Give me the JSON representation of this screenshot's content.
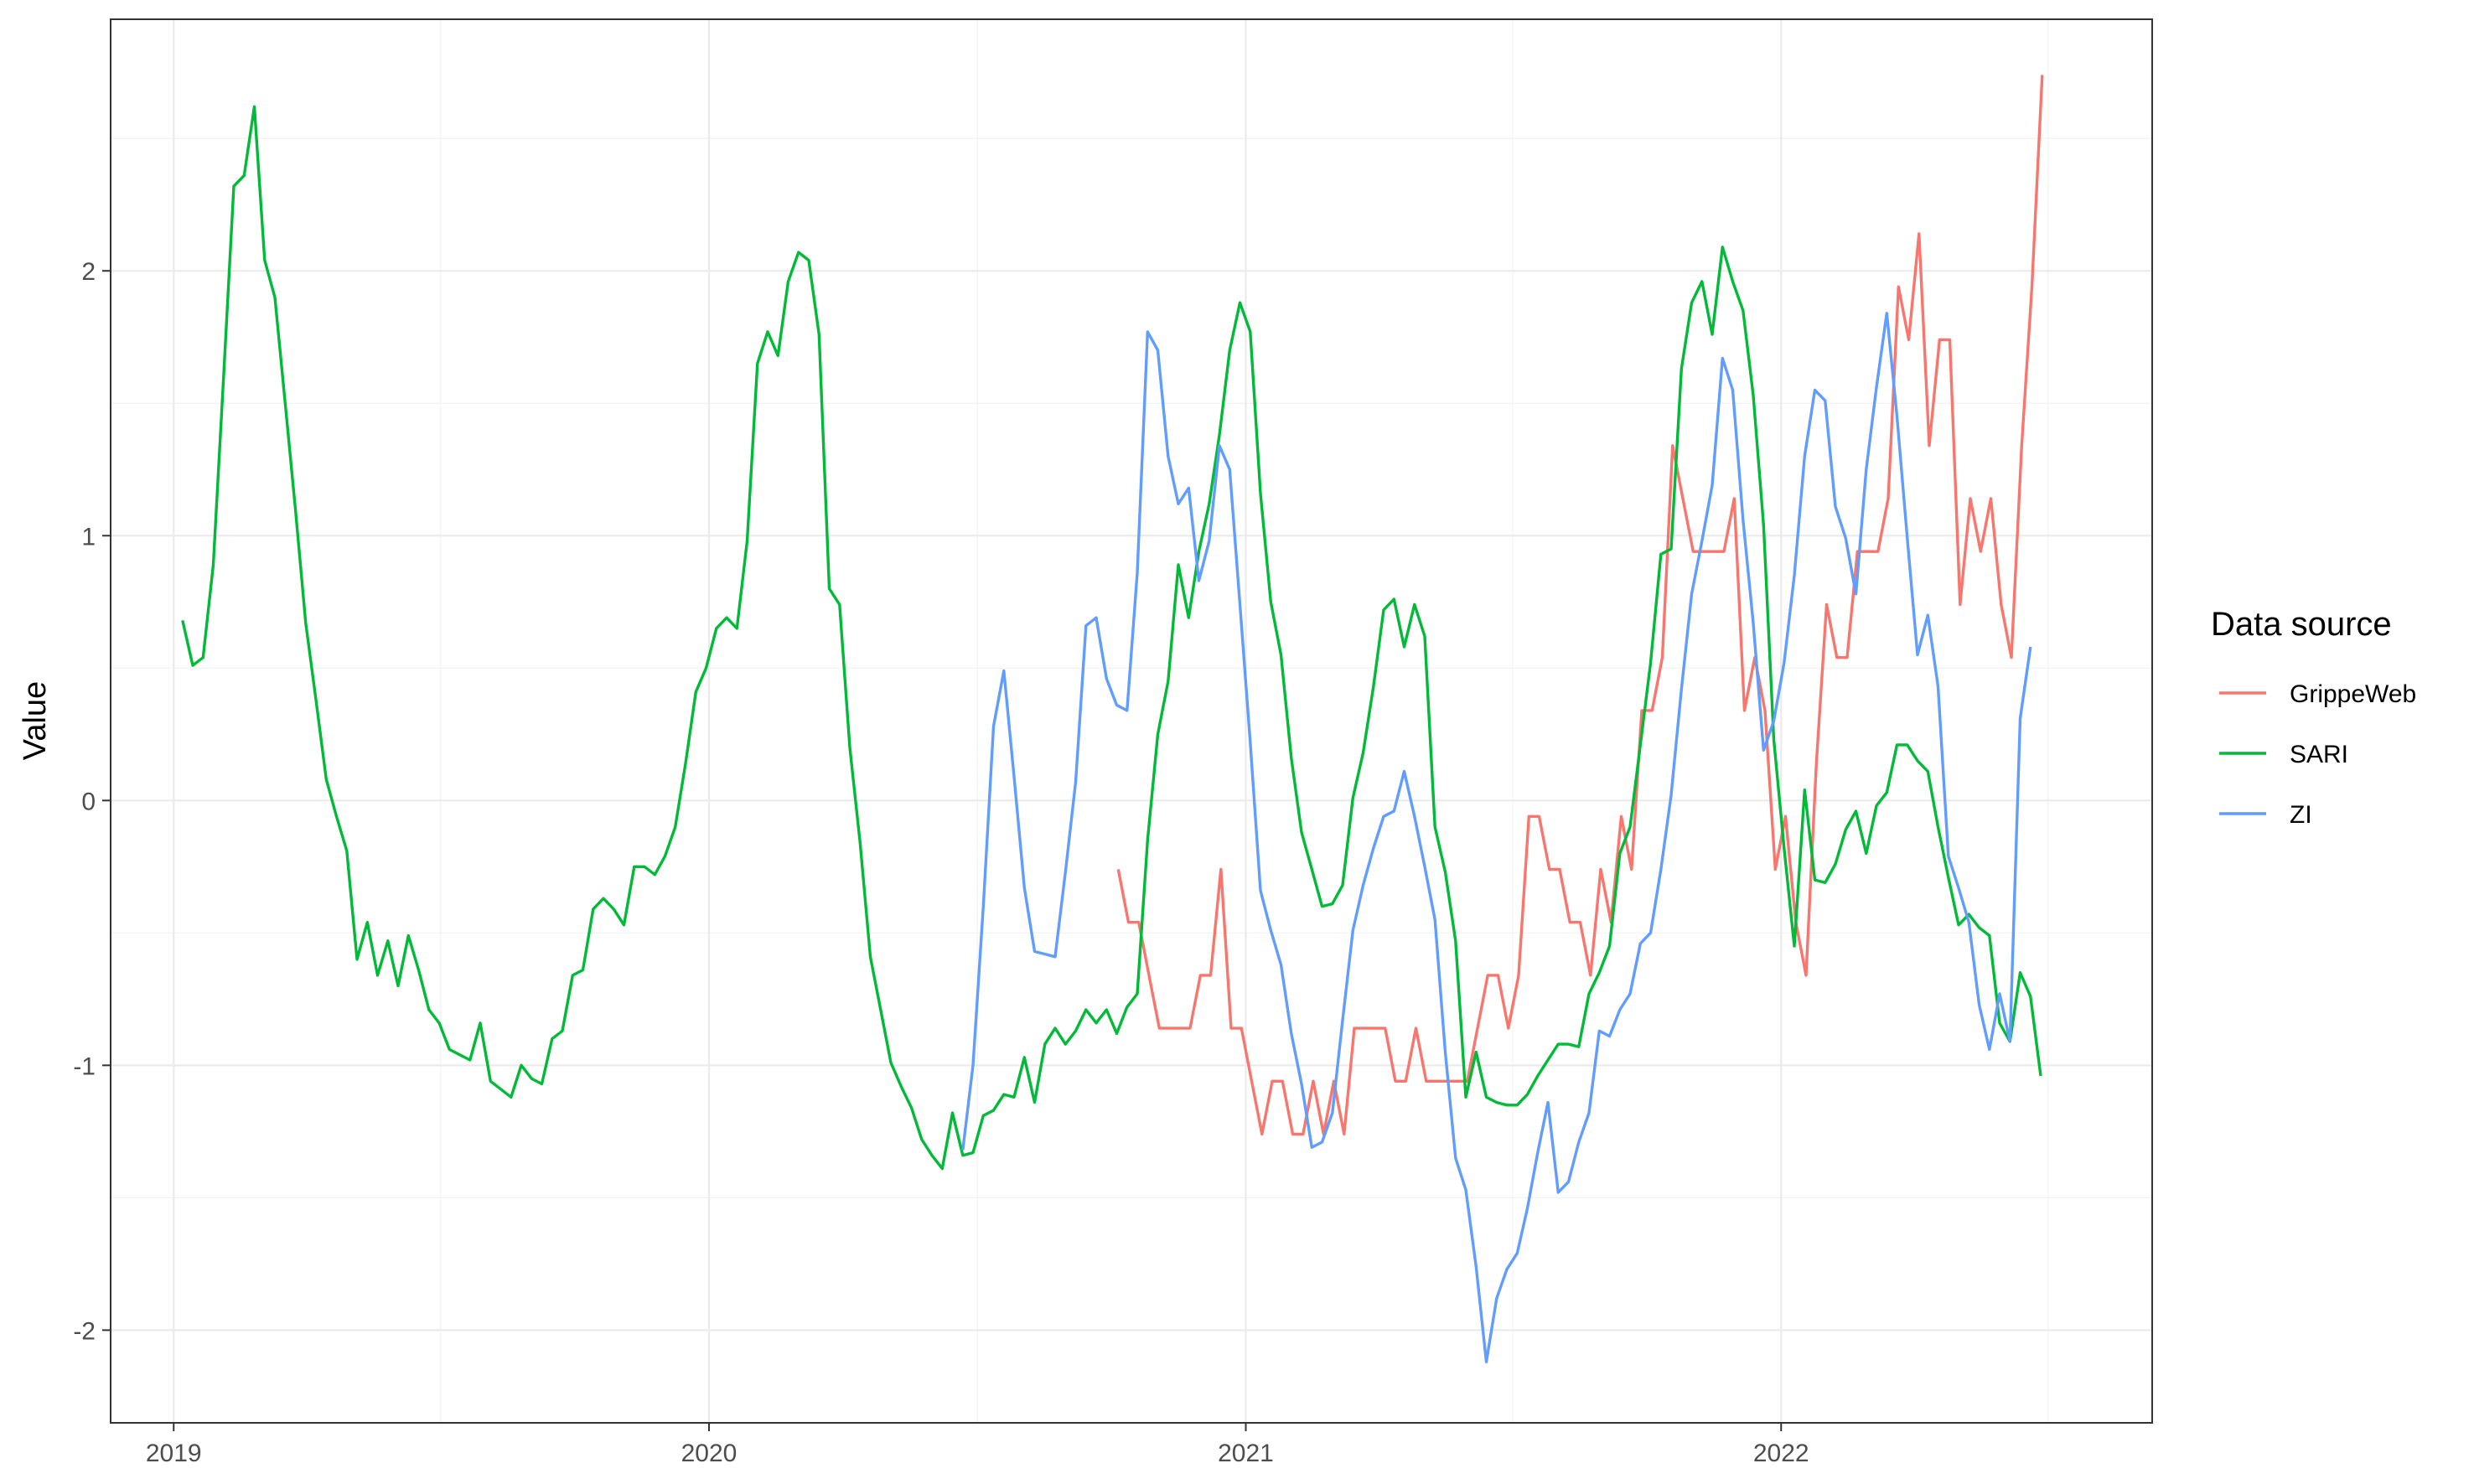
{
  "chart_data": {
    "type": "line",
    "title": "",
    "xlabel": "",
    "ylabel": "Value",
    "x_tick_labels": [
      "2019",
      "2020",
      "2021",
      "2022"
    ],
    "y_tick_labels": [
      "-2",
      "-1",
      "0",
      "1",
      "2"
    ],
    "xlim": [
      "2018-11-19",
      "2022-09-11"
    ],
    "ylim": [
      -2.35,
      2.95
    ],
    "grid": true,
    "legend": {
      "title": "Data source",
      "position": "right"
    },
    "series": [
      {
        "name": "GrippeWeb",
        "color": "#F8766D",
        "x": [
          "2020-10-06",
          "2020-10-13",
          "2020-10-20",
          "2020-10-27",
          "2020-11-03",
          "2020-11-10",
          "2020-11-17",
          "2020-11-24",
          "2020-12-01",
          "2020-12-08",
          "2020-12-15",
          "2020-12-22",
          "2020-12-29",
          "2021-01-05",
          "2021-01-12",
          "2021-01-19",
          "2021-01-26",
          "2021-02-02",
          "2021-02-09",
          "2021-02-16",
          "2021-02-23",
          "2021-03-02",
          "2021-03-09",
          "2021-03-16",
          "2021-03-23",
          "2021-03-30",
          "2021-04-06",
          "2021-04-13",
          "2021-04-20",
          "2021-04-27",
          "2021-05-04",
          "2021-05-11",
          "2021-05-18",
          "2021-05-25",
          "2021-06-01",
          "2021-06-08",
          "2021-06-15",
          "2021-06-22",
          "2021-06-29",
          "2021-07-06",
          "2021-07-13",
          "2021-07-20",
          "2021-07-27",
          "2021-08-03",
          "2021-08-10",
          "2021-08-17",
          "2021-08-24",
          "2021-08-31",
          "2021-09-07",
          "2021-09-14",
          "2021-09-21",
          "2021-09-28",
          "2021-10-05",
          "2021-10-12",
          "2021-10-19",
          "2021-10-26",
          "2021-11-02",
          "2021-11-09",
          "2021-11-16",
          "2021-11-23",
          "2021-11-30",
          "2021-12-07",
          "2021-12-14",
          "2021-12-21",
          "2021-12-28",
          "2022-01-04",
          "2022-01-11",
          "2022-01-18",
          "2022-01-25",
          "2022-02-01",
          "2022-02-08",
          "2022-02-15",
          "2022-02-22",
          "2022-03-01",
          "2022-03-08",
          "2022-03-15",
          "2022-03-22",
          "2022-03-29",
          "2022-04-05",
          "2022-04-12",
          "2022-04-19",
          "2022-04-26",
          "2022-05-03",
          "2022-05-10",
          "2022-05-17",
          "2022-05-24",
          "2022-05-31",
          "2022-06-07",
          "2022-06-14",
          "2022-06-21",
          "2022-06-28"
        ],
        "y": [
          -0.26,
          -0.46,
          -0.46,
          -0.66,
          -0.86,
          -0.86,
          -0.86,
          -0.86,
          -0.66,
          -0.66,
          -0.26,
          -0.86,
          -0.86,
          -1.06,
          -1.26,
          -1.06,
          -1.06,
          -1.26,
          -1.26,
          -1.06,
          -1.26,
          -1.06,
          -1.26,
          -0.86,
          -0.86,
          -0.86,
          -0.86,
          -1.06,
          -1.06,
          -0.86,
          -1.06,
          -1.06,
          -1.06,
          -1.06,
          -1.06,
          -0.86,
          -0.66,
          -0.66,
          -0.86,
          -0.66,
          -0.06,
          -0.06,
          -0.26,
          -0.26,
          -0.46,
          -0.46,
          -0.66,
          -0.26,
          -0.46,
          -0.06,
          -0.26,
          0.34,
          0.34,
          0.54,
          1.34,
          1.14,
          0.94,
          0.94,
          0.94,
          0.94,
          1.14,
          0.34,
          0.54,
          0.34,
          -0.26,
          -0.06,
          -0.46,
          -0.66,
          0.14,
          0.74,
          0.54,
          0.54,
          0.94,
          0.94,
          0.94,
          1.14,
          1.94,
          1.74,
          2.14,
          1.34,
          1.74,
          1.74,
          0.74,
          1.14,
          0.94,
          1.14,
          0.74,
          0.54,
          1.34,
          1.94,
          2.74
        ]
      },
      {
        "name": "SARI",
        "color": "#00BA38",
        "x": [
          "2019-01-07",
          "2019-01-14",
          "2019-01-21",
          "2019-01-28",
          "2019-02-04",
          "2019-02-11",
          "2019-02-18",
          "2019-02-25",
          "2019-03-04",
          "2019-03-11",
          "2019-03-18",
          "2019-03-25",
          "2019-04-01",
          "2019-04-08",
          "2019-04-15",
          "2019-04-22",
          "2019-04-29",
          "2019-05-06",
          "2019-05-13",
          "2019-05-20",
          "2019-05-27",
          "2019-06-03",
          "2019-06-10",
          "2019-06-17",
          "2019-06-24",
          "2019-07-01",
          "2019-07-08",
          "2019-07-15",
          "2019-07-22",
          "2019-07-29",
          "2019-08-05",
          "2019-08-12",
          "2019-08-19",
          "2019-08-26",
          "2019-09-02",
          "2019-09-09",
          "2019-09-16",
          "2019-09-23",
          "2019-09-30",
          "2019-10-07",
          "2019-10-14",
          "2019-10-21",
          "2019-10-28",
          "2019-11-04",
          "2019-11-11",
          "2019-11-18",
          "2019-11-25",
          "2019-12-02",
          "2019-12-09",
          "2019-12-16",
          "2019-12-23",
          "2019-12-30",
          "2020-01-06",
          "2020-01-13",
          "2020-01-20",
          "2020-01-27",
          "2020-02-03",
          "2020-02-10",
          "2020-02-17",
          "2020-02-24",
          "2020-03-02",
          "2020-03-09",
          "2020-03-16",
          "2020-03-23",
          "2020-03-30",
          "2020-04-06",
          "2020-04-13",
          "2020-04-20",
          "2020-04-27",
          "2020-05-04",
          "2020-05-11",
          "2020-05-18",
          "2020-05-25",
          "2020-06-01",
          "2020-06-08",
          "2020-06-15",
          "2020-06-22",
          "2020-06-29",
          "2020-07-06",
          "2020-07-13",
          "2020-07-20",
          "2020-07-27",
          "2020-08-03",
          "2020-08-10",
          "2020-08-17",
          "2020-08-24",
          "2020-08-31",
          "2020-09-07",
          "2020-09-14",
          "2020-09-21",
          "2020-09-28",
          "2020-10-05",
          "2020-10-12",
          "2020-10-19",
          "2020-10-26",
          "2020-11-02",
          "2020-11-09",
          "2020-11-16",
          "2020-11-23",
          "2020-11-30",
          "2020-12-07",
          "2020-12-14",
          "2020-12-21",
          "2020-12-28",
          "2021-01-04",
          "2021-01-11",
          "2021-01-18",
          "2021-01-25",
          "2021-02-01",
          "2021-02-08",
          "2021-02-15",
          "2021-02-22",
          "2021-03-01",
          "2021-03-08",
          "2021-03-15",
          "2021-03-22",
          "2021-03-29",
          "2021-04-05",
          "2021-04-12",
          "2021-04-19",
          "2021-04-26",
          "2021-05-03",
          "2021-05-10",
          "2021-05-17",
          "2021-05-24",
          "2021-05-31",
          "2021-06-07",
          "2021-06-14",
          "2021-06-21",
          "2021-06-28",
          "2021-07-05",
          "2021-07-12",
          "2021-07-19",
          "2021-07-26",
          "2021-08-02",
          "2021-08-09",
          "2021-08-16",
          "2021-08-23",
          "2021-08-30",
          "2021-09-06",
          "2021-09-13",
          "2021-09-20",
          "2021-09-27",
          "2021-10-04",
          "2021-10-11",
          "2021-10-18",
          "2021-10-25",
          "2021-11-01",
          "2021-11-08",
          "2021-11-15",
          "2021-11-22",
          "2021-11-29",
          "2021-12-06",
          "2021-12-13",
          "2021-12-20",
          "2021-12-27",
          "2022-01-03",
          "2022-01-10",
          "2022-01-17",
          "2022-01-24",
          "2022-01-31",
          "2022-02-07",
          "2022-02-14",
          "2022-02-21",
          "2022-02-28",
          "2022-03-07",
          "2022-03-14",
          "2022-03-21",
          "2022-03-28",
          "2022-04-04",
          "2022-04-11",
          "2022-04-18",
          "2022-04-25",
          "2022-05-02",
          "2022-05-09",
          "2022-05-16",
          "2022-05-23",
          "2022-05-30",
          "2022-06-06",
          "2022-06-13",
          "2022-06-20",
          "2022-06-27"
        ],
        "y": [
          0.68,
          0.51,
          0.54,
          0.89,
          1.6,
          2.32,
          2.36,
          2.62,
          2.04,
          1.9,
          1.5,
          1.1,
          0.67,
          0.38,
          0.08,
          -0.06,
          -0.19,
          -0.6,
          -0.46,
          -0.66,
          -0.53,
          -0.7,
          -0.51,
          -0.64,
          -0.79,
          -0.84,
          -0.94,
          -0.96,
          -0.98,
          -0.84,
          -1.06,
          -1.09,
          -1.12,
          -1.0,
          -1.05,
          -1.07,
          -0.9,
          -0.87,
          -0.66,
          -0.64,
          -0.41,
          -0.37,
          -0.41,
          -0.47,
          -0.25,
          -0.25,
          -0.28,
          -0.21,
          -0.1,
          0.14,
          0.41,
          0.5,
          0.65,
          0.69,
          0.65,
          0.98,
          1.65,
          1.77,
          1.68,
          1.96,
          2.07,
          2.04,
          1.76,
          0.8,
          0.74,
          0.2,
          -0.16,
          -0.59,
          -0.79,
          -0.99,
          -1.08,
          -1.16,
          -1.28,
          -1.34,
          -1.39,
          -1.18,
          -1.34,
          -1.33,
          -1.19,
          -1.17,
          -1.11,
          -1.12,
          -0.97,
          -1.14,
          -0.92,
          -0.86,
          -0.92,
          -0.87,
          -0.79,
          -0.84,
          -0.79,
          -0.88,
          -0.78,
          -0.73,
          -0.15,
          0.25,
          0.45,
          0.89,
          0.69,
          0.94,
          1.12,
          1.38,
          1.7,
          1.88,
          1.77,
          1.16,
          0.75,
          0.55,
          0.16,
          -0.12,
          -0.26,
          -0.4,
          -0.39,
          -0.32,
          0.01,
          0.18,
          0.43,
          0.72,
          0.76,
          0.58,
          0.74,
          0.62,
          -0.1,
          -0.27,
          -0.53,
          -1.12,
          -0.95,
          -1.12,
          -1.14,
          -1.15,
          -1.15,
          -1.11,
          -1.04,
          -0.98,
          -0.92,
          -0.92,
          -0.93,
          -0.73,
          -0.65,
          -0.55,
          -0.2,
          -0.1,
          0.21,
          0.52,
          0.93,
          0.95,
          1.63,
          1.88,
          1.96,
          1.76,
          2.09,
          1.96,
          1.85,
          1.53,
          1.04,
          0.23,
          -0.18,
          -0.55,
          0.04,
          -0.3,
          -0.31,
          -0.24,
          -0.11,
          -0.04,
          -0.2,
          -0.02,
          0.03,
          0.21,
          0.21,
          0.15,
          0.11,
          -0.1,
          -0.29,
          -0.47,
          -0.43,
          -0.48,
          -0.51,
          -0.84,
          -0.91,
          -0.65,
          -0.74,
          -1.04
        ]
      },
      {
        "name": "ZI",
        "color": "#619CFF",
        "x": [
          "2020-06-22",
          "2020-06-29",
          "2020-07-06",
          "2020-07-13",
          "2020-07-20",
          "2020-07-27",
          "2020-08-03",
          "2020-08-10",
          "2020-08-17",
          "2020-08-24",
          "2020-08-31",
          "2020-09-07",
          "2020-09-14",
          "2020-09-21",
          "2020-09-28",
          "2020-10-05",
          "2020-10-12",
          "2020-10-19",
          "2020-10-26",
          "2020-11-02",
          "2020-11-09",
          "2020-11-16",
          "2020-11-23",
          "2020-11-30",
          "2020-12-07",
          "2020-12-14",
          "2020-12-21",
          "2020-12-28",
          "2021-01-04",
          "2021-01-11",
          "2021-01-18",
          "2021-01-25",
          "2021-02-01",
          "2021-02-08",
          "2021-02-15",
          "2021-02-22",
          "2021-03-01",
          "2021-03-08",
          "2021-03-15",
          "2021-03-22",
          "2021-03-29",
          "2021-04-05",
          "2021-04-12",
          "2021-04-19",
          "2021-04-26",
          "2021-05-03",
          "2021-05-10",
          "2021-05-17",
          "2021-05-24",
          "2021-05-31",
          "2021-06-07",
          "2021-06-14",
          "2021-06-21",
          "2021-06-28",
          "2021-07-05",
          "2021-07-12",
          "2021-07-19",
          "2021-07-26",
          "2021-08-02",
          "2021-08-09",
          "2021-08-16",
          "2021-08-23",
          "2021-08-30",
          "2021-09-06",
          "2021-09-13",
          "2021-09-20",
          "2021-09-27",
          "2021-10-04",
          "2021-10-11",
          "2021-10-18",
          "2021-10-25",
          "2021-11-01",
          "2021-11-08",
          "2021-11-15",
          "2021-11-22",
          "2021-11-29",
          "2021-12-06",
          "2021-12-13",
          "2021-12-20",
          "2021-12-27",
          "2022-01-03",
          "2022-01-10",
          "2022-01-17",
          "2022-01-24",
          "2022-01-31",
          "2022-02-07",
          "2022-02-14",
          "2022-02-21",
          "2022-02-28",
          "2022-03-07",
          "2022-03-14",
          "2022-03-21",
          "2022-03-28",
          "2022-04-04",
          "2022-04-11",
          "2022-04-18",
          "2022-04-25",
          "2022-05-02",
          "2022-05-09",
          "2022-05-16",
          "2022-05-23",
          "2022-05-30",
          "2022-06-06",
          "2022-06-13",
          "2022-06-20"
        ],
        "y": [
          -1.32,
          -1.0,
          -0.4,
          0.28,
          0.49,
          0.09,
          -0.33,
          -0.57,
          -0.58,
          -0.59,
          -0.27,
          0.07,
          0.66,
          0.69,
          0.46,
          0.36,
          0.34,
          0.86,
          1.77,
          1.7,
          1.3,
          1.12,
          1.18,
          0.83,
          0.98,
          1.34,
          1.25,
          0.74,
          0.22,
          -0.34,
          -0.49,
          -0.62,
          -0.88,
          -1.07,
          -1.31,
          -1.29,
          -1.18,
          -0.83,
          -0.49,
          -0.32,
          -0.18,
          -0.06,
          -0.04,
          0.11,
          -0.06,
          -0.25,
          -0.45,
          -0.95,
          -1.35,
          -1.47,
          -1.76,
          -2.12,
          -1.88,
          -1.77,
          -1.71,
          -1.54,
          -1.33,
          -1.14,
          -1.48,
          -1.44,
          -1.29,
          -1.18,
          -0.87,
          -0.89,
          -0.79,
          -0.73,
          -0.54,
          -0.5,
          -0.26,
          0.02,
          0.42,
          0.78,
          0.98,
          1.19,
          1.67,
          1.55,
          1.06,
          0.67,
          0.19,
          0.3,
          0.52,
          0.85,
          1.3,
          1.55,
          1.51,
          1.11,
          0.99,
          0.78,
          1.25,
          1.56,
          1.84,
          1.45,
          0.99,
          0.55,
          0.7,
          0.43,
          -0.21,
          -0.33,
          -0.46,
          -0.77,
          -0.94,
          -0.73,
          -0.91,
          0.31,
          0.58
        ]
      }
    ]
  }
}
